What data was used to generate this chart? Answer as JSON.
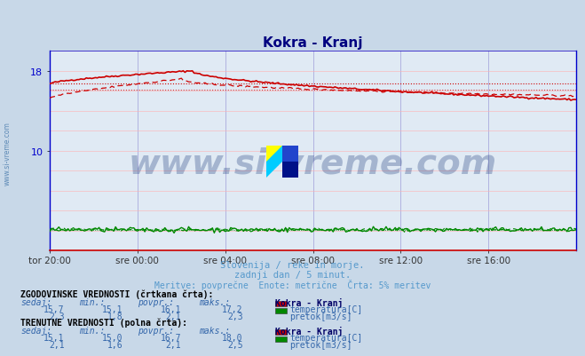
{
  "title": "Kokra - Kranj",
  "title_color": "#000080",
  "bg_color": "#c8d8e8",
  "plot_bg_color": "#e0eaf4",
  "xlabel_ticks": [
    "tor 20:00",
    "sre 00:00",
    "sre 04:00",
    "sre 08:00",
    "sre 12:00",
    "sre 16:00"
  ],
  "yticks_labels": [
    "10",
    "18"
  ],
  "yticks_vals": [
    10,
    18
  ],
  "ymin": 0,
  "ymax": 20,
  "n_points": 289,
  "grid_color_red": "#ffb0b0",
  "grid_color_blue": "#aaaadd",
  "watermark_text": "www.si-vreme.com",
  "watermark_color": "#1a3a7a",
  "watermark_alpha": 0.3,
  "watermark_fontsize": 28,
  "subtitle1": "Slovenija / reke in morje.",
  "subtitle2": "zadnji dan / 5 minut.",
  "subtitle3": "Meritve: povprečne  Enote: metrične  Črta: 5% meritev",
  "subtitle_color": "#5599cc",
  "temp_color": "#cc0000",
  "flow_color": "#008800",
  "spine_color_lr": "#0000cc",
  "spine_color_bottom": "#cc0000",
  "tick_color": "#333333",
  "ytick_color": "#0000cc",
  "title_fontsize": 11,
  "table_header_color": "#000000",
  "table_label_color": "#3366aa",
  "table_value_color": "#3366aa",
  "table_station_color": "#000066",
  "hist_sedaj": "15,7",
  "hist_min": "15,1",
  "hist_povpr": "16,1",
  "hist_maks": "17,2",
  "hist_flow_sedaj": "2,3",
  "hist_flow_min": "1,8",
  "hist_flow_povpr": "2,1",
  "hist_flow_maks": "2,3",
  "curr_sedaj": "15,1",
  "curr_min": "15,0",
  "curr_povpr": "16,7",
  "curr_maks": "18,0",
  "curr_flow_sedaj": "2,1",
  "curr_flow_min": "1,6",
  "curr_flow_povpr": "2,1",
  "curr_flow_maks": "2,5",
  "logo_yellow": "#ffff00",
  "logo_cyan": "#00ccff",
  "logo_blue": "#2244cc",
  "logo_darkblue": "#001188"
}
